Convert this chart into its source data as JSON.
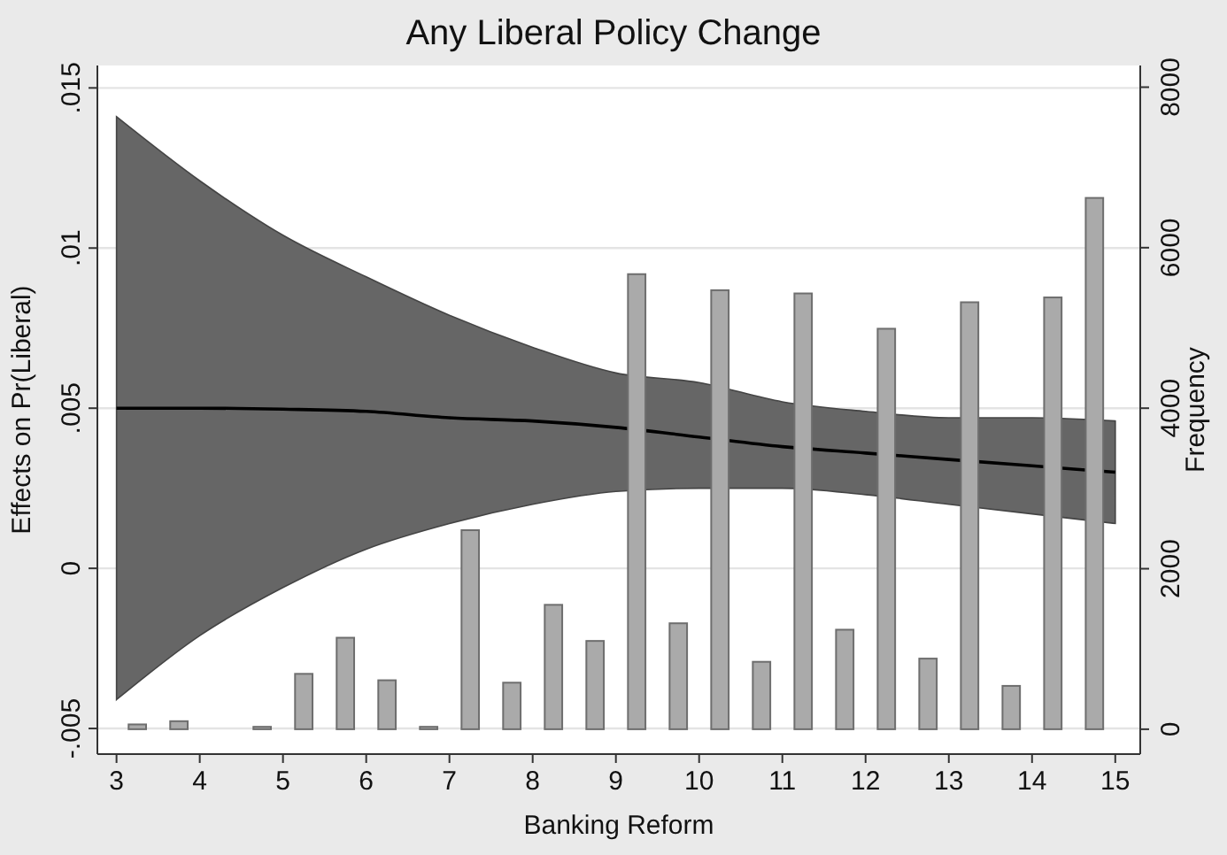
{
  "chart_data": {
    "type": "line",
    "title": "Any Liberal Policy Change",
    "xlabel": "Banking Reform",
    "ylabel": "Effects on Pr(Liberal)",
    "y2label": "Frequency",
    "xlim": [
      2.77,
      15.3
    ],
    "xticks": [
      3,
      4,
      5,
      6,
      7,
      8,
      9,
      10,
      11,
      12,
      13,
      14,
      15
    ],
    "ylim": [
      -0.0058,
      0.0157
    ],
    "yticks": [
      {
        "value": -0.005,
        "label": "-.005"
      },
      0,
      {
        "value": 0.005,
        "label": ".005"
      },
      {
        "value": 0.01,
        "label": ".01"
      },
      {
        "value": 0.015,
        "label": ".015"
      }
    ],
    "y2lim": [
      -310,
      8270
    ],
    "y2ticks": [
      0,
      2000,
      4000,
      6000,
      8000
    ],
    "grid": "y",
    "series": [
      {
        "type": "bar",
        "axis": "y2",
        "color": "#aaaaaa",
        "x": [
          3.25,
          3.75,
          4.25,
          4.75,
          5.25,
          5.75,
          6.25,
          6.75,
          7.25,
          7.75,
          8.25,
          8.75,
          9.25,
          9.75,
          10.25,
          10.75,
          11.25,
          11.75,
          12.25,
          12.75,
          13.25,
          13.75,
          14.25,
          14.75
        ],
        "values": [
          60,
          100,
          0,
          30,
          690,
          1140,
          610,
          30,
          2480,
          580,
          1550,
          1100,
          5670,
          1320,
          5470,
          840,
          5430,
          1240,
          4990,
          880,
          5320,
          540,
          5380,
          6620
        ]
      },
      {
        "color": "#000000",
        "x": [
          3,
          4,
          5,
          6,
          7,
          8,
          9,
          10,
          11,
          12,
          13,
          14,
          15
        ],
        "values": [
          0.005,
          0.005,
          0.00497,
          0.0049,
          0.0047,
          0.0046,
          0.0044,
          0.0041,
          0.0038,
          0.0036,
          0.0034,
          0.0032,
          0.003
        ],
        "lower": [
          -0.0041,
          -0.0021,
          -0.0006,
          0.0006,
          0.0014,
          0.002,
          0.0024,
          0.0025,
          0.0025,
          0.0023,
          0.002,
          0.0017,
          0.0014
        ],
        "upper": [
          0.0141,
          0.0121,
          0.0104,
          0.0091,
          0.0079,
          0.0069,
          0.0061,
          0.0058,
          0.0052,
          0.0049,
          0.0047,
          0.0047,
          0.0046
        ]
      }
    ]
  }
}
